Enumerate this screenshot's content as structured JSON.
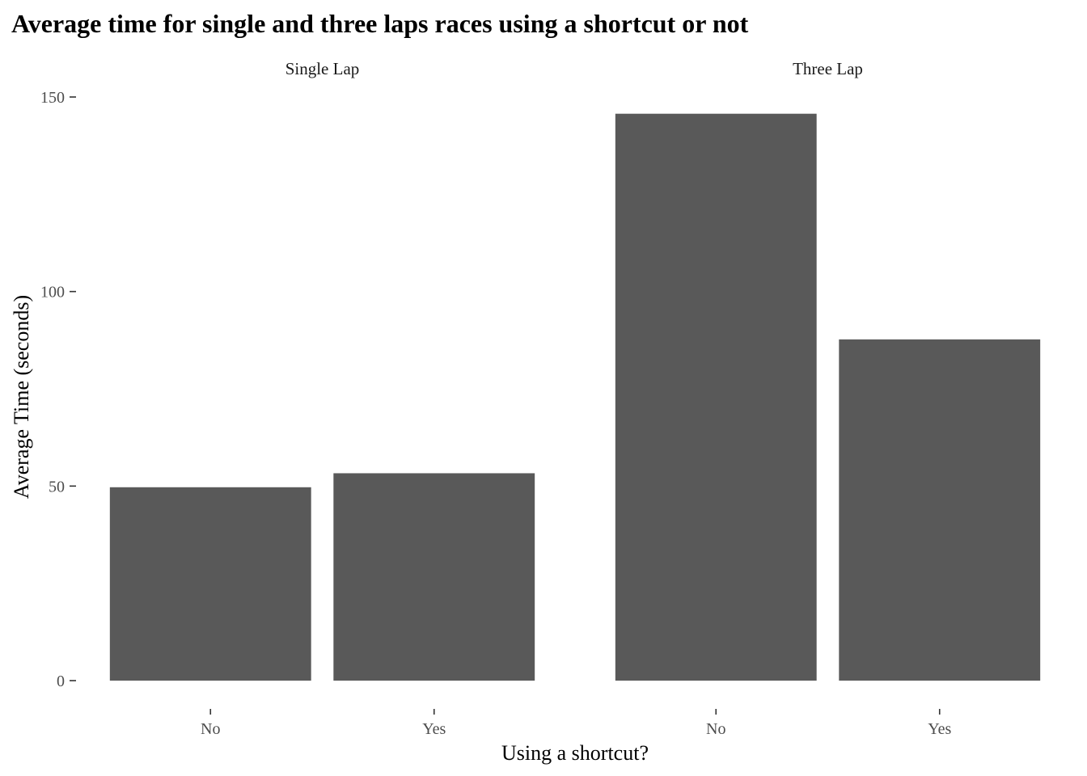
{
  "chart_data": {
    "type": "bar",
    "title": "Average time for single and three laps races using a shortcut or not",
    "xlabel": "Using a shortcut?",
    "ylabel": "Average Time (seconds)",
    "ylim": [
      0,
      150
    ],
    "yticks": [
      0,
      50,
      100,
      150
    ],
    "grid": false,
    "legend": "none",
    "bar_color": "#595959",
    "facets": [
      {
        "label": "Single Lap",
        "categories": [
          "No",
          "Yes"
        ],
        "values": [
          49.7,
          53.3
        ]
      },
      {
        "label": "Three Lap",
        "categories": [
          "No",
          "Yes"
        ],
        "values": [
          145.7,
          87.7
        ]
      }
    ]
  }
}
